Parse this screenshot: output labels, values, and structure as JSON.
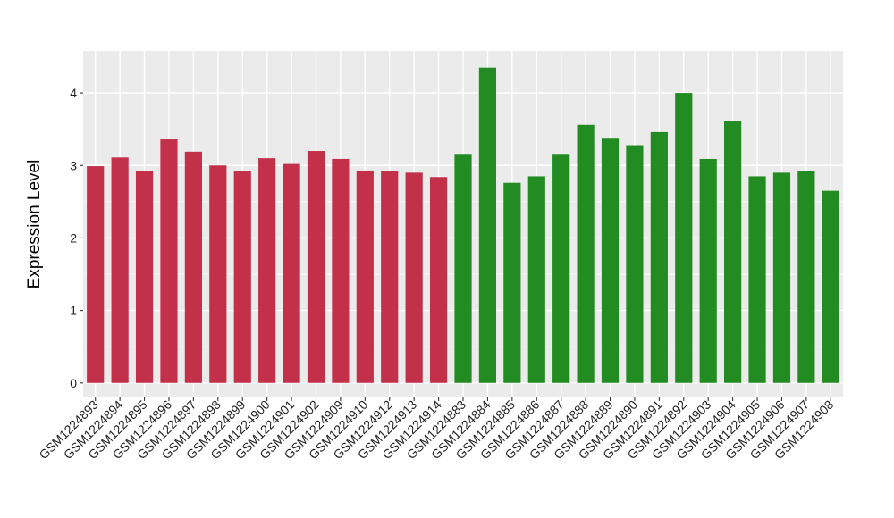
{
  "chart_data": {
    "type": "bar",
    "title": "",
    "xlabel": "",
    "ylabel": "Expression Level",
    "ylim": [
      0,
      4.5
    ],
    "yticks": [
      0,
      1,
      2,
      3,
      4
    ],
    "grid": true,
    "legend": "none",
    "categories": [
      "GSM1224893",
      "GSM1224894",
      "GSM1224895",
      "GSM1224896",
      "GSM1224897",
      "GSM1224898",
      "GSM1224899",
      "GSM1224900",
      "GSM1224901",
      "GSM1224902",
      "GSM1224909",
      "GSM1224910",
      "GSM1224912",
      "GSM1224913",
      "GSM1224914",
      "GSM1224883",
      "GSM1224884",
      "GSM1224885",
      "GSM1224886",
      "GSM1224887",
      "GSM1224888",
      "GSM1224889",
      "GSM1224890",
      "GSM1224891",
      "GSM1224892",
      "GSM1224903",
      "GSM1224904",
      "GSM1224905",
      "GSM1224906",
      "GSM1224907",
      "GSM1224908"
    ],
    "values": [
      2.99,
      3.11,
      2.92,
      3.36,
      3.19,
      3.0,
      2.92,
      3.1,
      3.02,
      3.2,
      3.09,
      2.93,
      2.92,
      2.9,
      2.84,
      3.16,
      4.35,
      2.76,
      2.85,
      3.16,
      3.56,
      3.37,
      3.28,
      3.46,
      4.0,
      3.09,
      3.61,
      2.85,
      2.9,
      2.92,
      2.65
    ],
    "groups": [
      0,
      0,
      0,
      0,
      0,
      0,
      0,
      0,
      0,
      0,
      0,
      0,
      0,
      0,
      0,
      1,
      1,
      1,
      1,
      1,
      1,
      1,
      1,
      1,
      1,
      1,
      1,
      1,
      1,
      1,
      1
    ],
    "group_colors": [
      "#c3304a",
      "#228b22"
    ],
    "panel_background": "#ebebeb",
    "grid_color": "#ffffff"
  }
}
